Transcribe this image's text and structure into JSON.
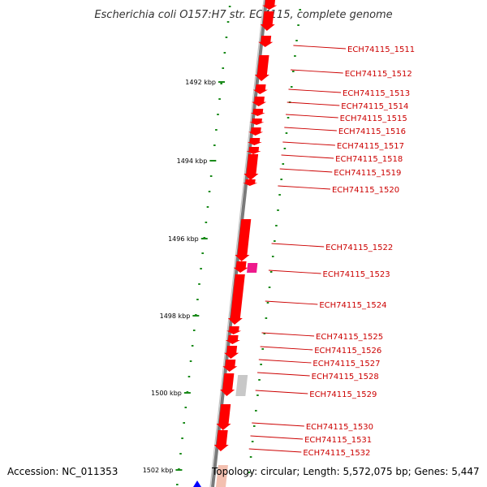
{
  "title": "Escherichia coli O157:H7 str. EC4115, complete genome",
  "footer": {
    "accession": "Accession: NC_011353",
    "topology": "Topology: circular; Length: 5,572,075 bp; Genes: 5,447"
  },
  "colors": {
    "backbone": "#7a7a7a",
    "gene": "#ff0000",
    "gene_alt": "#ee1a8c",
    "gene_pseudo": "#c8c8c8",
    "gene_minus": "#0000ff",
    "label": "#cc0000",
    "tick": "#1a8a1a"
  },
  "kbp_ticks": [
    "1492 kbp",
    "1494 kbp",
    "1496 kbp",
    "1498 kbp",
    "1500 kbp",
    "1502 kbp"
  ],
  "gene_labels": [
    "ECH74115_1511",
    "ECH74115_1512",
    "ECH74115_1513",
    "ECH74115_1514",
    "ECH74115_1515",
    "ECH74115_1516",
    "ECH74115_1517",
    "ECH74115_1518",
    "ECH74115_1519",
    "ECH74115_1520",
    "ECH74115_1522",
    "ECH74115_1523",
    "ECH74115_1524",
    "ECH74115_1525",
    "ECH74115_1526",
    "ECH74115_1527",
    "ECH74115_1528",
    "ECH74115_1529",
    "ECH74115_1530",
    "ECH74115_1531",
    "ECH74115_1532"
  ]
}
